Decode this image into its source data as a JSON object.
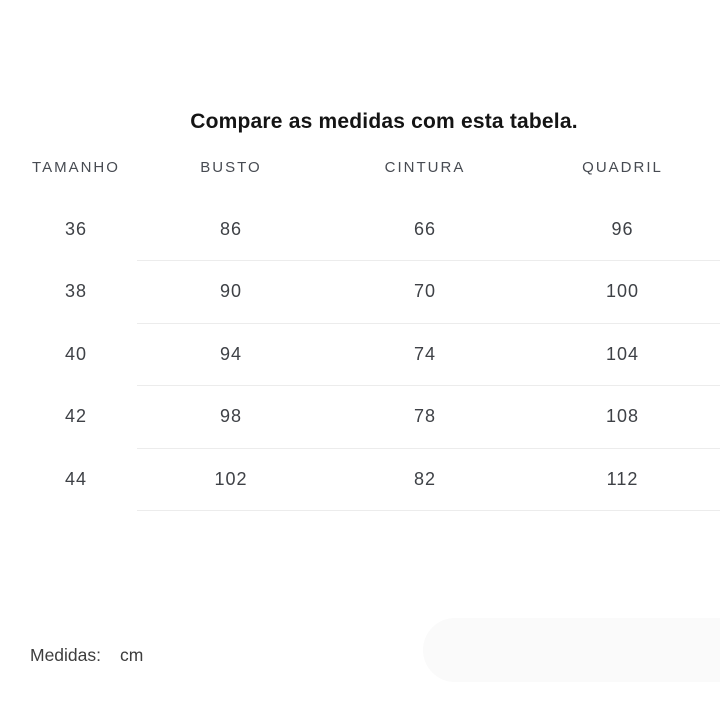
{
  "page": {
    "title": "Compare as medidas com esta tabela."
  },
  "size_chart": {
    "columns": [
      "TAMANHO",
      "BUSTO",
      "CINTURA",
      "QUADRIL"
    ],
    "rows": [
      [
        "36",
        "86",
        "66",
        "96"
      ],
      [
        "38",
        "90",
        "70",
        "100"
      ],
      [
        "40",
        "94",
        "74",
        "104"
      ],
      [
        "42",
        "98",
        "78",
        "108"
      ],
      [
        "44",
        "102",
        "82",
        "112"
      ]
    ]
  },
  "footer": {
    "label": "Medidas:",
    "unit": "cm"
  },
  "colors": {
    "background": "#ffffff",
    "title": "#141414",
    "header_text": "#474b52",
    "data_text": "#3e4146",
    "divider": "#ececec",
    "footer_text": "#3d3d3d",
    "corner_pill": "#fafafa"
  }
}
